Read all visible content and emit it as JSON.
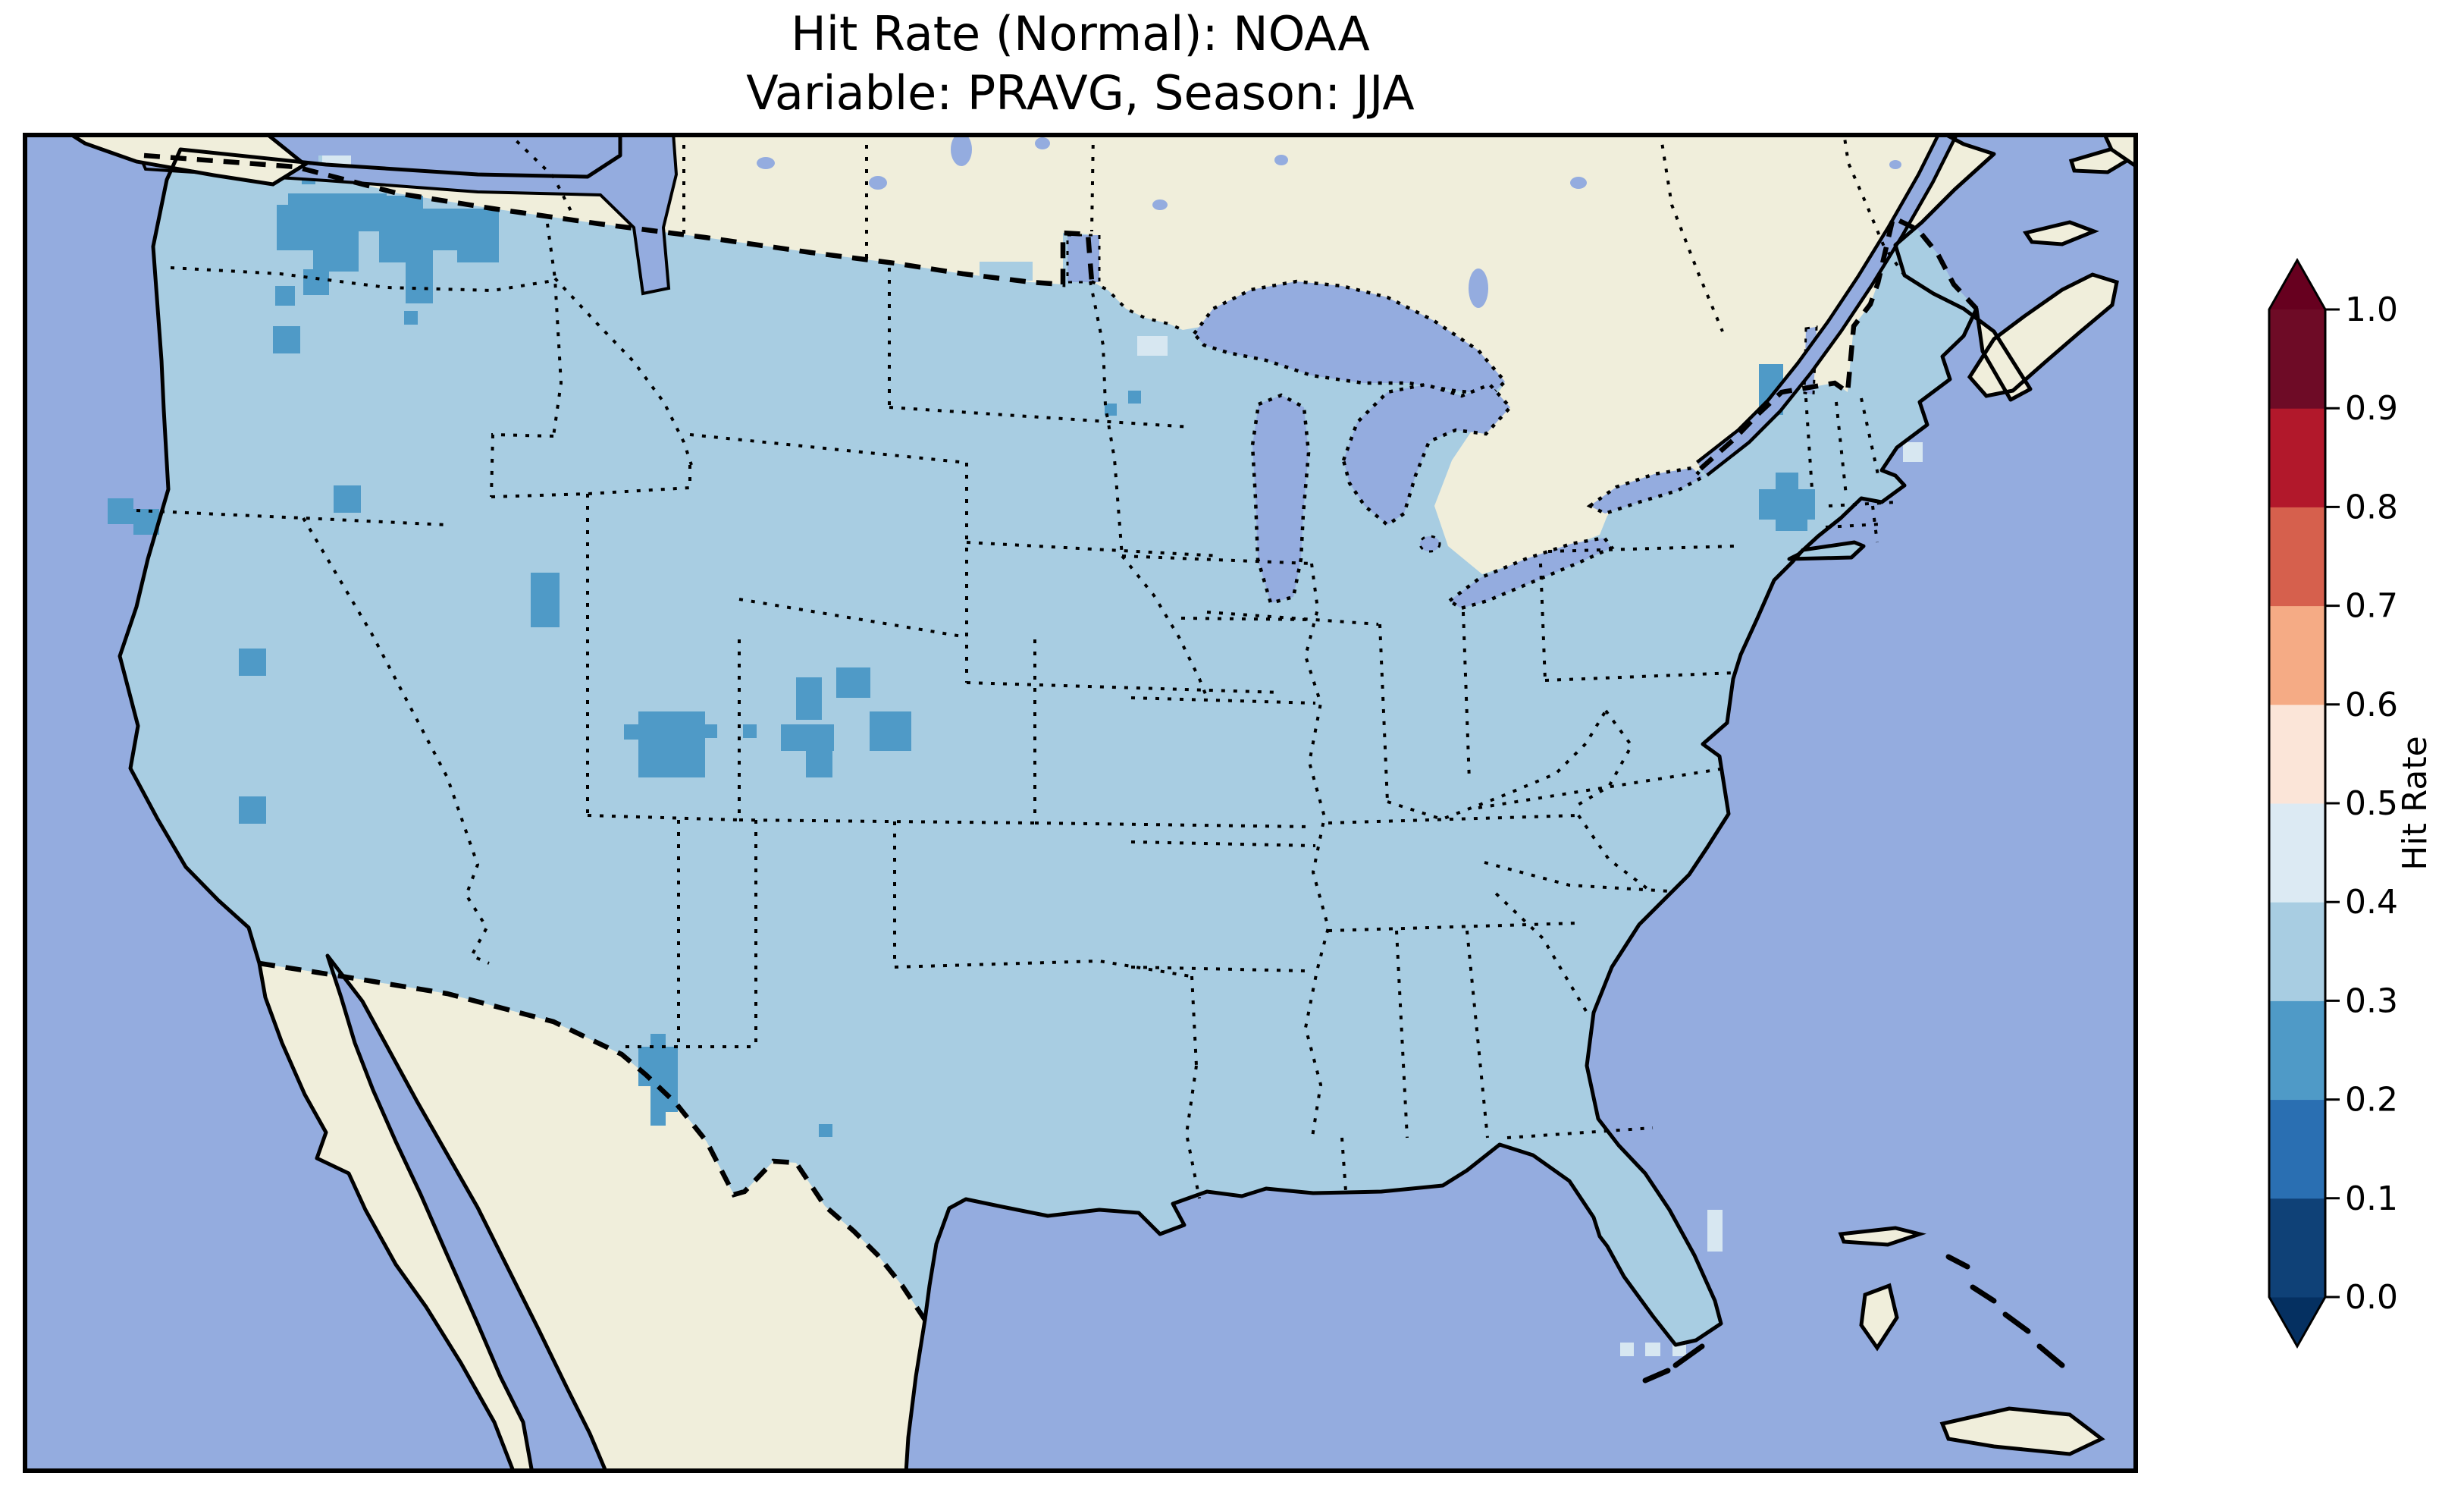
{
  "title": {
    "line1": "Hit Rate (Normal): NOAA",
    "line2": "Variable: PRAVG, Season: JJA"
  },
  "colorbar": {
    "label": "Hit Rate",
    "ticks": [
      "1.0",
      "0.9",
      "0.8",
      "0.7",
      "0.6",
      "0.5",
      "0.4",
      "0.3",
      "0.2",
      "0.1",
      "0.0"
    ],
    "segments_low_to_high": [
      {
        "range": "< 0.0",
        "color": "#053061"
      },
      {
        "range": "0.0–0.1",
        "color": "#0f4177"
      },
      {
        "range": "0.1–0.2",
        "color": "#2a6fb2"
      },
      {
        "range": "0.2–0.3",
        "color": "#4f9ac7"
      },
      {
        "range": "0.3–0.4",
        "color": "#a8cde2"
      },
      {
        "range": "0.4–0.5",
        "color": "#dceaf3"
      },
      {
        "range": "0.5–0.6",
        "color": "#fbe5d8"
      },
      {
        "range": "0.6–0.7",
        "color": "#f5ab85"
      },
      {
        "range": "0.7–0.8",
        "color": "#d6604d"
      },
      {
        "range": "0.8–0.9",
        "color": "#b2182b"
      },
      {
        "range": "0.9–1.0",
        "color": "#6e0b26"
      },
      {
        "range": "> 1.0",
        "color": "#67001f"
      }
    ]
  },
  "map": {
    "colors": {
      "ocean": "#94acdf",
      "land": "#f0eedb",
      "us_fill": "#a8cde2",
      "low_cell": "#4f9ac7",
      "pale_cell": "#d7e7f1",
      "coastline": "#000000",
      "frame": "#000000"
    },
    "low_patches": [
      [
        335,
        95,
        60,
        60
      ],
      [
        350,
        80,
        130,
        50
      ],
      [
        383,
        128,
        60,
        55
      ],
      [
        368,
        50,
        18,
        18
      ],
      [
        470,
        83,
        58,
        88
      ],
      [
        505,
        100,
        122,
        55
      ],
      [
        505,
        155,
        36,
        70
      ],
      [
        503,
        235,
        18,
        18
      ],
      [
        573,
        101,
        55,
        70
      ],
      [
        370,
        180,
        34,
        34
      ],
      [
        333,
        202,
        26,
        26
      ],
      [
        330,
        255,
        36,
        36
      ],
      [
        112,
        482,
        34,
        34
      ],
      [
        146,
        496,
        34,
        34
      ],
      [
        410,
        465,
        36,
        36
      ],
      [
        285,
        680,
        36,
        36
      ],
      [
        285,
        875,
        36,
        36
      ],
      [
        670,
        580,
        38,
        72
      ],
      [
        793,
        780,
        26,
        20
      ],
      [
        812,
        763,
        88,
        87
      ],
      [
        898,
        780,
        18,
        18
      ],
      [
        950,
        780,
        18,
        18
      ],
      [
        1000,
        780,
        70,
        35
      ],
      [
        1033,
        815,
        35,
        35
      ],
      [
        1117,
        763,
        55,
        52
      ],
      [
        1020,
        718,
        34,
        56
      ],
      [
        1073,
        705,
        45,
        40
      ],
      [
        828,
        1188,
        20,
        18
      ],
      [
        812,
        1205,
        52,
        52
      ],
      [
        828,
        1257,
        36,
        34
      ],
      [
        828,
        1291,
        20,
        18
      ],
      [
        1050,
        1307,
        18,
        17
      ],
      [
        1427,
        357,
        16,
        16
      ],
      [
        1458,
        340,
        17,
        17
      ],
      [
        2290,
        305,
        32,
        67
      ],
      [
        2312,
        448,
        30,
        28
      ],
      [
        2290,
        470,
        74,
        40
      ],
      [
        2312,
        505,
        42,
        20
      ]
    ],
    "pale_patches": [
      [
        2107,
        1595,
        18,
        18
      ],
      [
        2140,
        1595,
        20,
        18
      ],
      [
        2176,
        1595,
        18,
        18
      ],
      [
        2222,
        1420,
        20,
        55
      ],
      [
        2480,
        408,
        26,
        26
      ],
      [
        1470,
        268,
        40,
        26
      ],
      [
        395,
        30,
        38,
        26
      ]
    ],
    "fringe_patches": [
      [
        870,
        148,
        105,
        30
      ],
      [
        1262,
        170,
        70,
        25
      ],
      [
        390,
        30,
        40,
        26
      ]
    ]
  },
  "chart_data": {
    "type": "heatmap",
    "title": "Hit Rate (Normal): NOAA",
    "subtitle": "Variable: PRAVG, Season: JJA",
    "region": "Continental United States drawn on a North America map (Canada and Mexico in beige, ocean and lakes in periwinkle blue)",
    "value_name": "Hit Rate",
    "value_range": [
      0.0,
      1.0
    ],
    "tick_step": 0.1,
    "colormap": "RdBu_r, discrete 0.1-wide bins, colorbar extended with triangles at both ends",
    "legend_position": "vertical colorbar at right, label 'Hit Rate' rotated, ticks 0.0 to 1.0",
    "dominant_bin": "0.3–0.4 (light blue) covers nearly the entire CONUS",
    "low_bin_regions_0.2_0.3": [
      "Washington Cascades",
      "northern Idaho / western Montana cluster (largest patch)",
      "north-central Montana cells",
      "northeastern Oregon cell",
      "northern Nevada pair of cells",
      "northern and southwestern Utah single cells",
      "southeastern California cell",
      "south-central Wyoming pair",
      "Colorado Rockies cluster and southeastern Wyoming / northern Colorado cells",
      "west Texas near El Paso (Rio Grande) patch plus one isolated cell",
      "northern Minnesota two cells",
      "eastern New York / Vermont border patch",
      "western Massachusetts / New York patch"
    ],
    "higher_bin_cells_0.4_0.5": "three pale cells in the Gulf southwest of the Florida peninsula tip and a few pale coastal fringe cells (Florida east coast, Maine coast, near Lake Superior border)",
    "grid_on": false
  }
}
